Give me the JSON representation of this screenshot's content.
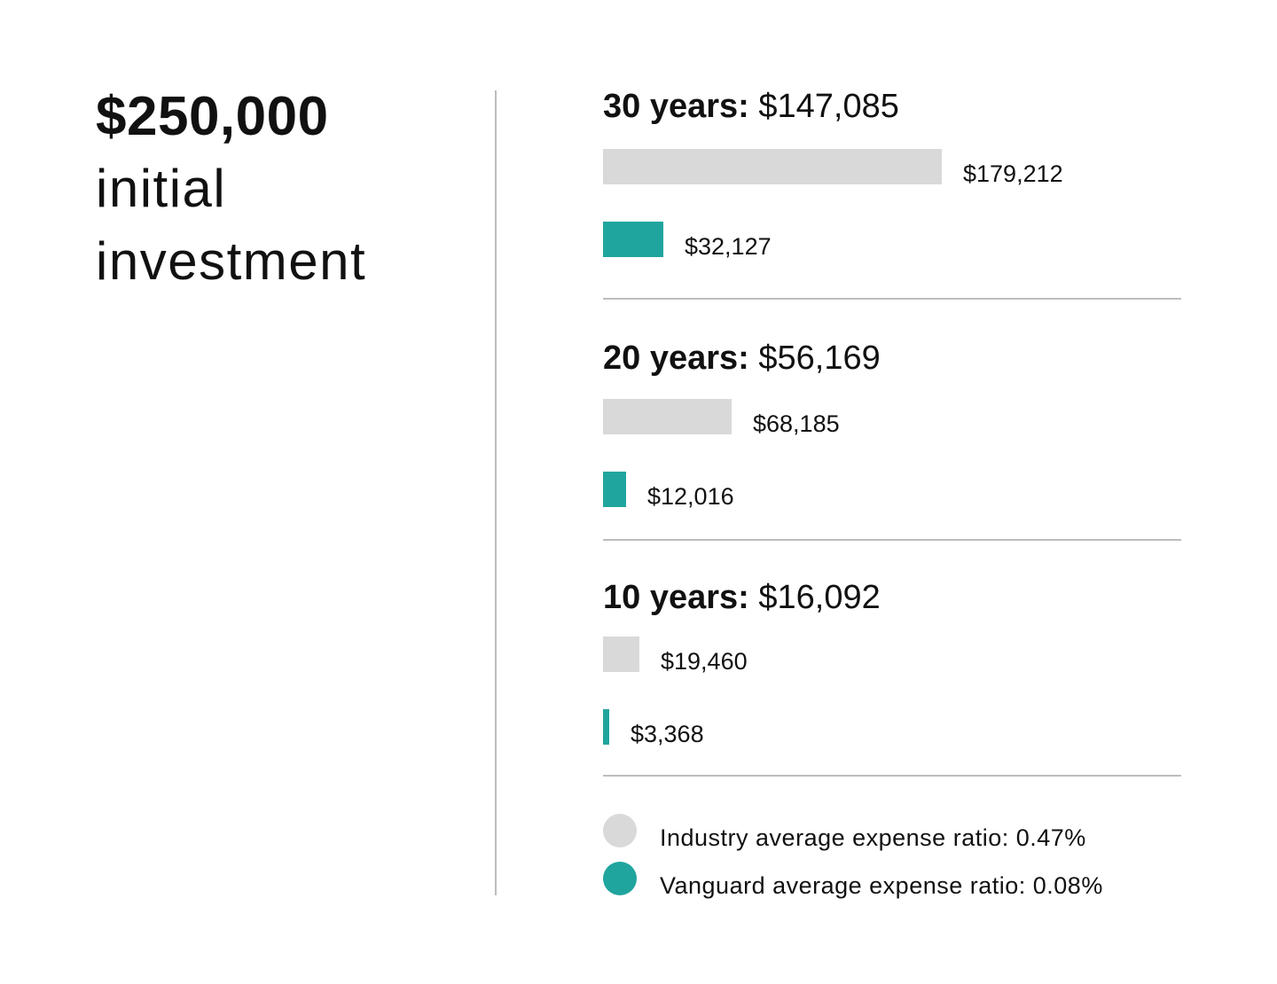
{
  "left": {
    "amount": "$250,000",
    "description": "initial\ninvestment"
  },
  "colors": {
    "industry": "#d9d9d9",
    "vanguard": "#1fa59e",
    "divider": "#bdbdbd"
  },
  "chart_data": {
    "type": "bar",
    "title": "",
    "orientation": "horizontal",
    "groups": [
      {
        "period": "30 years:",
        "difference": "$147,085",
        "industry": {
          "value": 179212,
          "label": "$179,212"
        },
        "vanguard": {
          "value": 32127,
          "label": "$32,127"
        }
      },
      {
        "period": "20 years:",
        "difference": "$56,169",
        "industry": {
          "value": 68185,
          "label": "$68,185"
        },
        "vanguard": {
          "value": 12016,
          "label": "$12,016"
        }
      },
      {
        "period": "10 years:",
        "difference": "$16,092",
        "industry": {
          "value": 19460,
          "label": "$19,460"
        },
        "vanguard": {
          "value": 3368,
          "label": "$3,368"
        }
      }
    ],
    "legend": [
      {
        "key": "industry",
        "label": "Industry average expense ratio: 0.47%"
      },
      {
        "key": "vanguard",
        "label": "Vanguard average expense ratio: 0.08%"
      }
    ]
  }
}
